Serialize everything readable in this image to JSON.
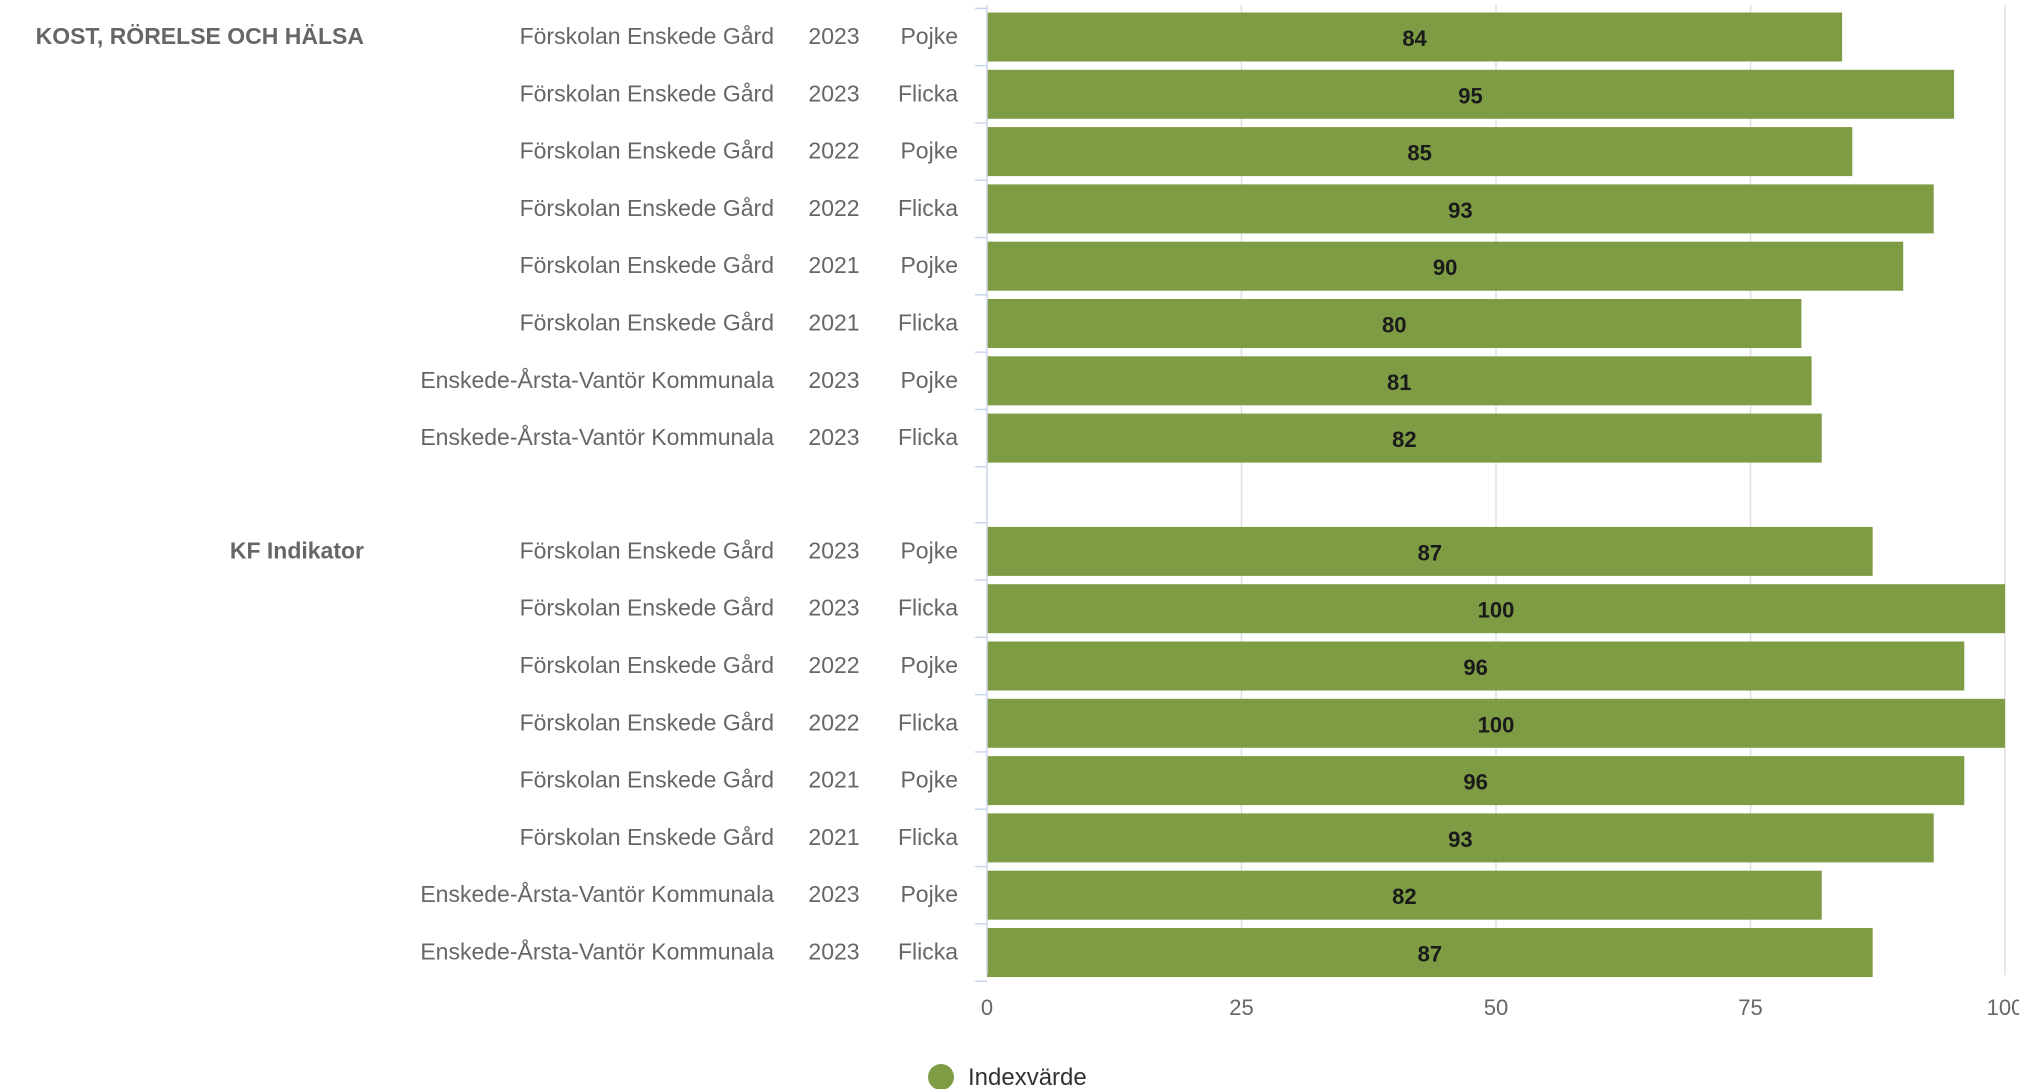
{
  "chart_data": {
    "type": "bar",
    "orientation": "horizontal",
    "series": [
      {
        "name": "Indexvärde",
        "color": "#7e9c44"
      }
    ],
    "groups": [
      {
        "label": "KOST, RÖRELSE OCH HÄLSA",
        "rows": [
          {
            "unit": "Förskolan Enskede Gård",
            "year": "2023",
            "gender": "Pojke",
            "value": 84
          },
          {
            "unit": "Förskolan Enskede Gård",
            "year": "2023",
            "gender": "Flicka",
            "value": 95
          },
          {
            "unit": "Förskolan Enskede Gård",
            "year": "2022",
            "gender": "Pojke",
            "value": 85
          },
          {
            "unit": "Förskolan Enskede Gård",
            "year": "2022",
            "gender": "Flicka",
            "value": 93
          },
          {
            "unit": "Förskolan Enskede Gård",
            "year": "2021",
            "gender": "Pojke",
            "value": 90
          },
          {
            "unit": "Förskolan Enskede Gård",
            "year": "2021",
            "gender": "Flicka",
            "value": 80
          },
          {
            "unit": "Enskede-Årsta-Vantör Kommunala",
            "year": "2023",
            "gender": "Pojke",
            "value": 81
          },
          {
            "unit": "Enskede-Årsta-Vantör Kommunala",
            "year": "2023",
            "gender": "Flicka",
            "value": 82
          }
        ]
      },
      {
        "label": "KF Indikator",
        "rows": [
          {
            "unit": "Förskolan Enskede Gård",
            "year": "2023",
            "gender": "Pojke",
            "value": 87
          },
          {
            "unit": "Förskolan Enskede Gård",
            "year": "2023",
            "gender": "Flicka",
            "value": 100
          },
          {
            "unit": "Förskolan Enskede Gård",
            "year": "2022",
            "gender": "Pojke",
            "value": 96
          },
          {
            "unit": "Förskolan Enskede Gård",
            "year": "2022",
            "gender": "Flicka",
            "value": 100
          },
          {
            "unit": "Förskolan Enskede Gård",
            "year": "2021",
            "gender": "Pojke",
            "value": 96
          },
          {
            "unit": "Förskolan Enskede Gård",
            "year": "2021",
            "gender": "Flicka",
            "value": 93
          },
          {
            "unit": "Enskede-Årsta-Vantör Kommunala",
            "year": "2023",
            "gender": "Pojke",
            "value": 82
          },
          {
            "unit": "Enskede-Årsta-Vantör Kommunala",
            "year": "2023",
            "gender": "Flicka",
            "value": 87
          }
        ]
      }
    ],
    "xlim": [
      0,
      100
    ],
    "xticks": [
      0,
      25,
      50,
      75,
      100
    ],
    "grid": true,
    "legend": {
      "position": "bottom-center",
      "label": "Indexvärde"
    },
    "colors": {
      "bar": "#7e9c44",
      "grid": "#e0e0e0",
      "axis": "#ccd6eb",
      "label": "#666666"
    }
  }
}
